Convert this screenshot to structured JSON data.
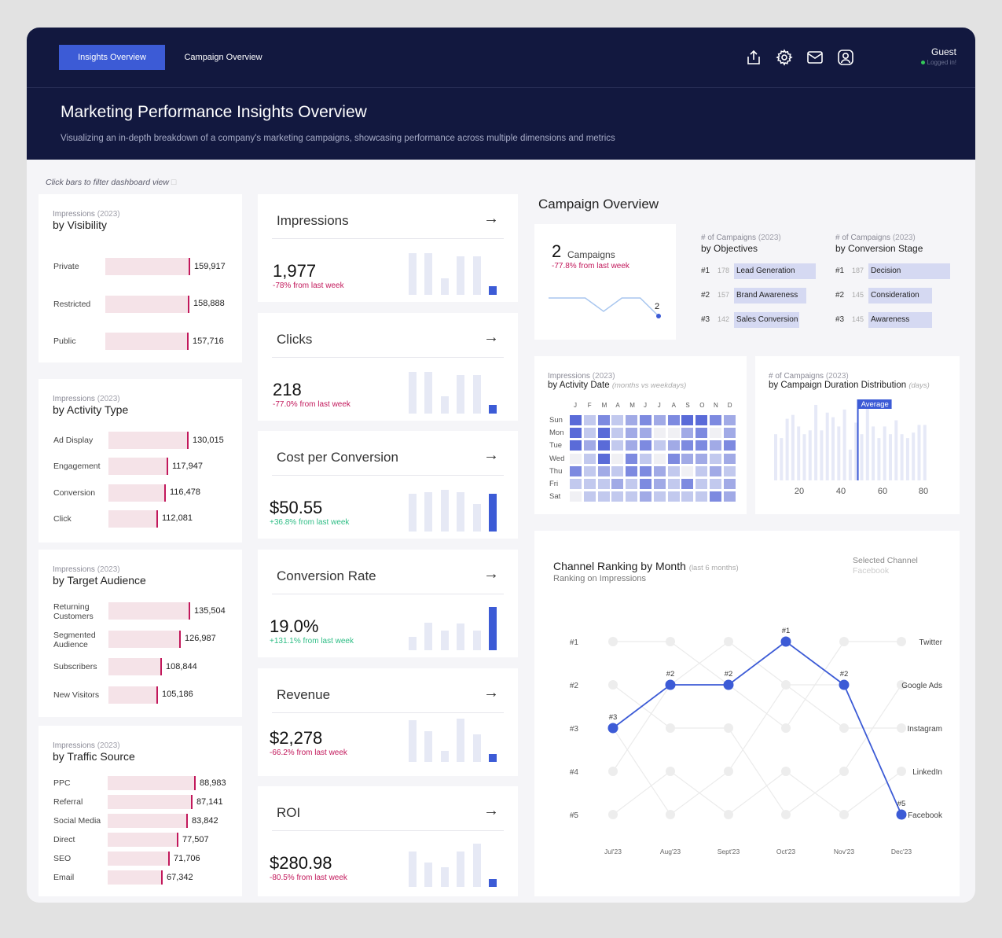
{
  "header": {
    "tabs": [
      {
        "label": "Insights Overview"
      },
      {
        "label": "Campaign Overview"
      }
    ],
    "user": {
      "name": "Guest",
      "status": "Logged in!"
    },
    "title": "Marketing Performance Insights Overview",
    "subtitle": "Visualizing an in-depth breakdown of a company's marketing campaigns, showcasing performance across multiple dimensions and metrics",
    "icons": [
      "share-icon",
      "gear-icon",
      "mail-icon",
      "user-icon"
    ]
  },
  "hint": "Click bars to filter dashboard view",
  "breakdowns": [
    {
      "metric": "Impressions",
      "year": "(2023)",
      "title": "by Visibility",
      "rows": [
        {
          "label": "Private",
          "value": 159917,
          "display": "159,917"
        },
        {
          "label": "Restricted",
          "value": 158888,
          "display": "158,888"
        },
        {
          "label": "Public",
          "value": 157716,
          "display": "157,716"
        }
      ]
    },
    {
      "metric": "Impressions",
      "year": "(2023)",
      "title": "by Activity Type",
      "rows": [
        {
          "label": "Ad Display",
          "value": 130015,
          "display": "130,015"
        },
        {
          "label": "Engagement",
          "value": 117947,
          "display": "117,947"
        },
        {
          "label": "Conversion",
          "value": 116478,
          "display": "116,478"
        },
        {
          "label": "Click",
          "value": 112081,
          "display": "112,081"
        }
      ]
    },
    {
      "metric": "Impressions",
      "year": "(2023)",
      "title": "by Target Audience",
      "rows": [
        {
          "label": "Returning Customers",
          "value": 135504,
          "display": "135,504"
        },
        {
          "label": "Segmented Audience",
          "value": 126987,
          "display": "126,987"
        },
        {
          "label": "Subscribers",
          "value": 108844,
          "display": "108,844"
        },
        {
          "label": "New Visitors",
          "value": 105186,
          "display": "105,186"
        }
      ]
    },
    {
      "metric": "Impressions",
      "year": "(2023)",
      "title": "by Traffic Source",
      "rows": [
        {
          "label": "PPC",
          "value": 88983,
          "display": "88,983"
        },
        {
          "label": "Referral",
          "value": 87141,
          "display": "87,141"
        },
        {
          "label": "Social Media",
          "value": 83842,
          "display": "83,842"
        },
        {
          "label": "Direct",
          "value": 77507,
          "display": "77,507"
        },
        {
          "label": "SEO",
          "value": 71706,
          "display": "71,706"
        },
        {
          "label": "Email",
          "value": 67342,
          "display": "67,342"
        }
      ]
    }
  ],
  "kpis": [
    {
      "title": "Impressions",
      "value": "1,977",
      "delta": "-78% from last week",
      "positive": false,
      "bars": [
        0.95,
        0.95,
        0.38,
        0.88,
        0.88,
        0.2
      ]
    },
    {
      "title": "Clicks",
      "value": "218",
      "delta": "-77.0% from last week",
      "positive": false,
      "bars": [
        0.95,
        0.95,
        0.4,
        0.88,
        0.88,
        0.2
      ]
    },
    {
      "title": "Cost per Conversion",
      "value": "$50.55",
      "delta": "+36.8% from last week",
      "positive": true,
      "bars": [
        0.85,
        0.9,
        0.95,
        0.9,
        0.62,
        0.85
      ]
    },
    {
      "title": "Conversion Rate",
      "value": "19.0%",
      "delta": "+131.1% from last week",
      "positive": true,
      "bars": [
        0.3,
        0.62,
        0.45,
        0.6,
        0.45,
        0.98
      ]
    },
    {
      "title": "Revenue",
      "value": "$2,278",
      "delta": "-66.2% from last week",
      "positive": false,
      "bars": [
        0.95,
        0.7,
        0.25,
        0.98,
        0.62,
        0.18
      ]
    },
    {
      "title": "ROI",
      "value": "$280.98",
      "delta": "-80.5% from last week",
      "positive": false,
      "bars": [
        0.8,
        0.55,
        0.45,
        0.8,
        0.98,
        0.18
      ]
    }
  ],
  "campaign_overview": {
    "title": "Campaign Overview",
    "count": "2",
    "count_label": "Campaigns",
    "delta": "-77.8% from last week",
    "spark": [
      0.9,
      0.9,
      0.9,
      0.45,
      0.9,
      0.9,
      0.1
    ],
    "spark_end_label": "2",
    "objectives": {
      "metric": "# of Campaigns",
      "year": "(2023)",
      "title": "by Objectives",
      "rows": [
        {
          "rank": "#1",
          "count": "178",
          "label": "Lead Generation",
          "value": 178
        },
        {
          "rank": "#2",
          "count": "157",
          "label": "Brand Awareness",
          "value": 157
        },
        {
          "rank": "#3",
          "count": "142",
          "label": "Sales Conversion",
          "value": 142
        }
      ]
    },
    "stages": {
      "metric": "# of Campaigns",
      "year": "(2023)",
      "title": "by Conversion Stage",
      "rows": [
        {
          "rank": "#1",
          "count": "187",
          "label": "Decision",
          "value": 187
        },
        {
          "rank": "#2",
          "count": "145",
          "label": "Consideration",
          "value": 145
        },
        {
          "rank": "#3",
          "count": "145",
          "label": "Awareness",
          "value": 145
        }
      ]
    }
  },
  "heatmap": {
    "metric": "Impressions",
    "year": "(2023)",
    "title": "by Activity Date",
    "note": "(months vs weekdays)",
    "months": [
      "J",
      "F",
      "M",
      "A",
      "M",
      "J",
      "J",
      "A",
      "S",
      "O",
      "N",
      "D"
    ],
    "days": [
      "Sun",
      "Mon",
      "Tue",
      "Wed",
      "Thu",
      "Fri",
      "Sat"
    ],
    "values": [
      [
        4,
        1,
        3,
        1,
        2,
        3,
        2,
        3,
        4,
        4,
        3,
        2
      ],
      [
        4,
        1,
        4,
        1,
        2,
        2,
        0,
        0,
        2,
        3,
        0,
        2
      ],
      [
        4,
        2,
        4,
        1,
        2,
        3,
        1,
        2,
        3,
        3,
        2,
        3
      ],
      [
        0,
        1,
        4,
        0,
        3,
        1,
        0,
        3,
        2,
        2,
        1,
        2
      ],
      [
        3,
        1,
        2,
        1,
        3,
        3,
        2,
        1,
        0,
        1,
        2,
        1
      ],
      [
        1,
        1,
        1,
        2,
        1,
        3,
        2,
        1,
        3,
        1,
        1,
        2
      ],
      [
        0,
        1,
        1,
        1,
        1,
        2,
        1,
        1,
        1,
        1,
        3,
        2
      ]
    ]
  },
  "duration": {
    "metric": "# of Campaigns",
    "year": "(2023)",
    "title": "by Campaign Duration Distribution",
    "note": "(days)",
    "ticks": [
      "20",
      "40",
      "60",
      "80"
    ],
    "avg_label": "Average",
    "bars": [
      0.6,
      0.55,
      0.8,
      0.85,
      0.7,
      0.6,
      0.65,
      0.98,
      0.65,
      0.88,
      0.82,
      0.7,
      0.92,
      0.4,
      0.75,
      0.6,
      0.95,
      0.7,
      0.55,
      0.7,
      0.6,
      0.78,
      0.6,
      0.55,
      0.62,
      0.72,
      0.72
    ]
  },
  "ranking": {
    "title": "Channel Ranking by Month",
    "title_note": "(last 6 months)",
    "subtitle": "Ranking on Impressions",
    "selected_label": "Selected Channel",
    "selected_value": "Facebook",
    "rank_labels": [
      "#1",
      "#2",
      "#3",
      "#4",
      "#5"
    ],
    "months": [
      "Jul'23",
      "Aug'23",
      "Sept'23",
      "Oct'23",
      "Nov'23",
      "Dec'23"
    ],
    "channels": [
      "Twitter",
      "Google Ads",
      "Instagram",
      "LinkedIn",
      "Facebook"
    ],
    "selected_ranks": [
      3,
      2,
      2,
      1,
      2,
      5
    ],
    "selected_rank_labels": [
      "#3",
      "#2",
      "#2",
      "#1",
      "#2",
      "#5"
    ]
  },
  "colors": {
    "accent": "#3c5bd6",
    "navy": "#12183f",
    "negative": "#c2185b",
    "positive": "#2ebd85",
    "barFill": "#f5e3e8"
  }
}
